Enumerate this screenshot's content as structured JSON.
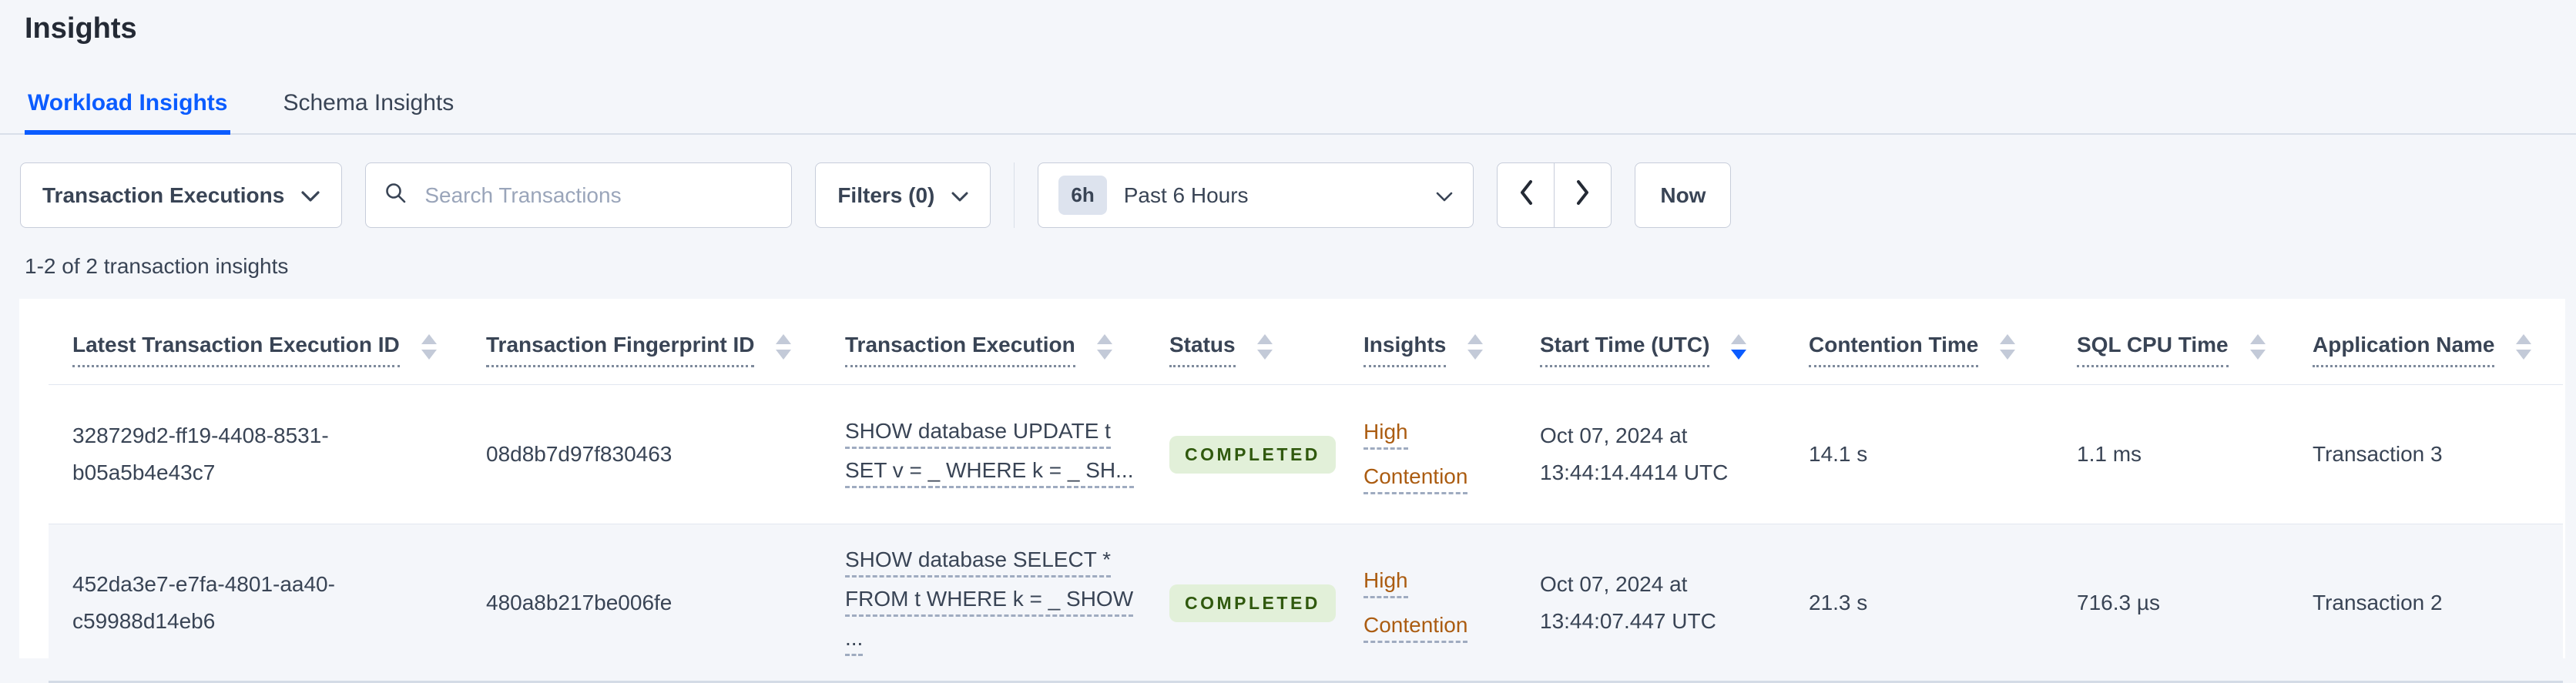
{
  "page": {
    "title": "Insights"
  },
  "tabs": [
    {
      "label": "Workload Insights",
      "active": true
    },
    {
      "label": "Schema Insights",
      "active": false
    }
  ],
  "toolbar": {
    "type_dropdown": {
      "label": "Transaction Executions"
    },
    "search": {
      "placeholder": "Search Transactions",
      "value": ""
    },
    "filters": {
      "label": "Filters (0)"
    },
    "time_picker": {
      "badge": "6h",
      "label": "Past 6 Hours"
    },
    "now_button": {
      "label": "Now"
    }
  },
  "results_summary": "1-2 of 2 transaction insights",
  "colors": {
    "accent_blue": "#0b5cff",
    "insight_amber": "#ab5c11",
    "status_completed_bg": "#e2f0d9",
    "status_completed_text": "#30590e",
    "page_background": "#f4f6fa"
  },
  "table": {
    "columns": [
      {
        "label": "Latest Transaction Execution ID",
        "sort": "none"
      },
      {
        "label": "Transaction Fingerprint ID",
        "sort": "none"
      },
      {
        "label": "Transaction Execution",
        "sort": "none"
      },
      {
        "label": "Status",
        "sort": "none"
      },
      {
        "label": "Insights",
        "sort": "none"
      },
      {
        "label": "Start Time (UTC)",
        "sort": "desc"
      },
      {
        "label": "Contention Time",
        "sort": "none"
      },
      {
        "label": "SQL CPU Time",
        "sort": "none"
      },
      {
        "label": "Application Name",
        "sort": "none"
      }
    ],
    "rows": [
      {
        "execution_id": "328729d2-ff19-4408-8531-b05a5b4e43c7",
        "fingerprint_id": "08d8b7d97f830463",
        "statement_lines": [
          "SHOW database UPDATE t",
          "SET v = _ WHERE k = _ SH..."
        ],
        "status": "COMPLETED",
        "insight": "High Contention",
        "start_time": "Oct 07, 2024 at 13:44:14.4414 UTC",
        "contention_time": "14.1 s",
        "sql_cpu_time": "1.1 ms",
        "application_name": "Transaction 3"
      },
      {
        "execution_id": "452da3e7-e7fa-4801-aa40-c59988d14eb6",
        "fingerprint_id": "480a8b217be006fe",
        "statement_lines": [
          "SHOW database SELECT *",
          "FROM t WHERE k = _ SHOW",
          "..."
        ],
        "status": "COMPLETED",
        "insight": "High Contention",
        "start_time": "Oct 07, 2024 at 13:44:07.447 UTC",
        "contention_time": "21.3 s",
        "sql_cpu_time": "716.3 µs",
        "application_name": "Transaction 2"
      }
    ]
  }
}
